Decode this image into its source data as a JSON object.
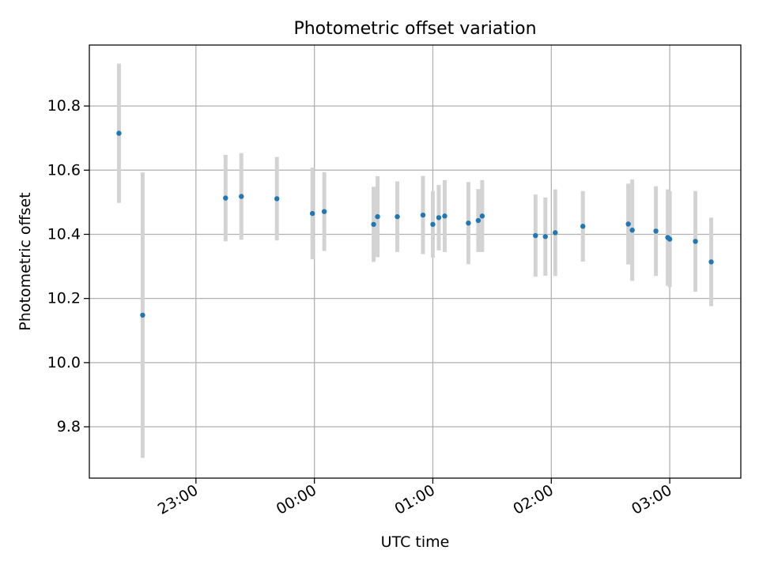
{
  "chart_data": {
    "type": "scatter",
    "title": "Photometric offset variation",
    "xlabel": "UTC time",
    "ylabel": "Photometric offset",
    "x_axis": "time",
    "x_ticks": [
      "23:00",
      "00:00",
      "01:00",
      "02:00",
      "03:00"
    ],
    "y_ticks": [
      "9.8",
      "10.0",
      "10.2",
      "10.4",
      "10.6",
      "10.8"
    ],
    "xlim": [
      "22:06",
      "03:36"
    ],
    "ylim": [
      9.64,
      10.99
    ],
    "grid": true,
    "legend": "none",
    "series": [
      {
        "points": [
          {
            "x": "22:21",
            "y": 10.715,
            "err": 0.217
          },
          {
            "x": "22:33",
            "y": 10.148,
            "err": 0.445
          },
          {
            "x": "23:15",
            "y": 10.513,
            "err": 0.135
          },
          {
            "x": "23:23",
            "y": 10.518,
            "err": 0.135
          },
          {
            "x": "23:41",
            "y": 10.511,
            "err": 0.13
          },
          {
            "x": "23:59",
            "y": 10.465,
            "err": 0.143
          },
          {
            "x": "00:05",
            "y": 10.471,
            "err": 0.123
          },
          {
            "x": "00:30",
            "y": 10.431,
            "err": 0.117
          },
          {
            "x": "00:32",
            "y": 10.455,
            "err": 0.126
          },
          {
            "x": "00:42",
            "y": 10.455,
            "err": 0.11
          },
          {
            "x": "00:55",
            "y": 10.46,
            "err": 0.122
          },
          {
            "x": "01:00",
            "y": 10.431,
            "err": 0.104
          },
          {
            "x": "01:03",
            "y": 10.452,
            "err": 0.102
          },
          {
            "x": "01:06",
            "y": 10.457,
            "err": 0.112
          },
          {
            "x": "01:18",
            "y": 10.435,
            "err": 0.128
          },
          {
            "x": "01:23",
            "y": 10.443,
            "err": 0.098
          },
          {
            "x": "01:25",
            "y": 10.457,
            "err": 0.112
          },
          {
            "x": "01:52",
            "y": 10.396,
            "err": 0.128
          },
          {
            "x": "01:57",
            "y": 10.393,
            "err": 0.122
          },
          {
            "x": "02:02",
            "y": 10.405,
            "err": 0.135
          },
          {
            "x": "02:16",
            "y": 10.425,
            "err": 0.11
          },
          {
            "x": "02:39",
            "y": 10.432,
            "err": 0.126
          },
          {
            "x": "02:41",
            "y": 10.413,
            "err": 0.158
          },
          {
            "x": "02:53",
            "y": 10.41,
            "err": 0.14
          },
          {
            "x": "02:59",
            "y": 10.39,
            "err": 0.15
          },
          {
            "x": "03:00",
            "y": 10.385,
            "err": 0.15
          },
          {
            "x": "03:13",
            "y": 10.378,
            "err": 0.157
          },
          {
            "x": "03:21",
            "y": 10.314,
            "err": 0.138
          }
        ]
      }
    ],
    "colors": {
      "point": "#1f77b4",
      "errorbar": "#d3d3d3",
      "grid": "#b0b0b0",
      "axis": "#000000"
    }
  }
}
